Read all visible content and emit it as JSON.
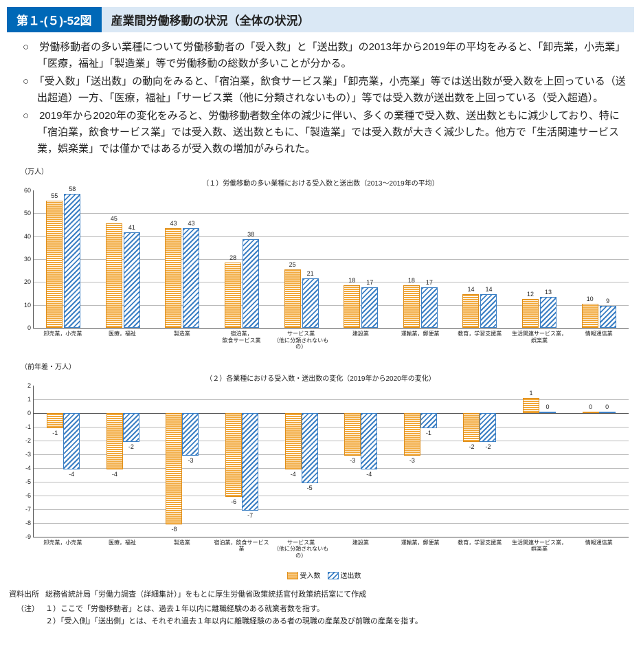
{
  "header": {
    "tag": "第１-(５)-52図",
    "title": "産業間労働移動の状況（全体の状況）"
  },
  "bullets": [
    "労働移動者の多い業種について労働移動者の「受入数」と「送出数」の2013年から2019年の平均をみると、「卸売業，小売業」「医療，福祉」「製造業」等で労働移動の総数が多いことが分かる。",
    "「受入数」「送出数」の動向をみると、「宿泊業，飲食サービス業」「卸売業，小売業」等では送出数が受入数を上回っている（送出超過）一方、「医療，福祉」「サービス業（他に分類されないもの）」等では受入数が送出数を上回っている（受入超過）。",
    "2019年から2020年の変化をみると、労働移動者数全体の減少に伴い、多くの業種で受入数、送出数ともに減少しており、特に「宿泊業，飲食サービス業」では受入数、送出数ともに、「製造業」では受入数が大きく減少した。他方で「生活関連サービス業，娯楽業」では僅かではあるが受入数の増加がみられた。"
  ],
  "chart1": {
    "type": "bar",
    "ylabel": "（万人）",
    "title": "（１）労働移動の多い業種における受入数と送出数（2013～2019年の平均）",
    "ylim": [
      0,
      60
    ],
    "ytick_step": 10,
    "grid_color": "#bbb",
    "categories": [
      "卸売業，小売業",
      "医療，福祉",
      "製造業",
      "宿泊業，\n飲食サービス業",
      "サービス業\n（他に分類されないもの）",
      "建設業",
      "運輸業，郵便業",
      "教育，学習支援業",
      "生活関連サービス業，\n娯楽業",
      "情報通信業"
    ],
    "series": [
      {
        "name": "受入数",
        "color": "#f2a93c",
        "border": "#df8f1c",
        "values": [
          55,
          45,
          43,
          28,
          25,
          18,
          18,
          14,
          12,
          10
        ]
      },
      {
        "name": "送出数",
        "color": "#3b7fc4",
        "border": "#3b7fc4",
        "values": [
          58,
          41,
          43,
          38,
          21,
          17,
          17,
          14,
          13,
          9
        ]
      }
    ]
  },
  "chart2": {
    "type": "bar",
    "ylabel": "（前年差・万人）",
    "title": "（２）各業種における受入数・送出数の変化（2019年から2020年の変化）",
    "ylim": [
      -9,
      2
    ],
    "ytick_step": 1,
    "grid_color": "#bbb",
    "categories": [
      "卸売業，小売業",
      "医療，福祉",
      "製造業",
      "宿泊業，飲食サービス業",
      "サービス業\n（他に分類されないもの）",
      "建設業",
      "運輸業，郵便業",
      "教育，学習支援業",
      "生活関連サービス業，\n娯楽業",
      "情報通信業"
    ],
    "series": [
      {
        "name": "受入数",
        "color": "#f2a93c",
        "border": "#df8f1c",
        "values": [
          -1,
          -4,
          -8,
          -6,
          -4,
          -3,
          -3,
          -2,
          1,
          0
        ]
      },
      {
        "name": "送出数",
        "color": "#3b7fc4",
        "border": "#3b7fc4",
        "values": [
          -4,
          -2,
          -3,
          -7,
          -5,
          -4,
          -1,
          -2,
          0,
          0
        ]
      }
    ]
  },
  "legend": {
    "items": [
      {
        "label": "受入数",
        "cls": "br"
      },
      {
        "label": "送出数",
        "cls": "bs"
      }
    ]
  },
  "notes": {
    "source_label": "資料出所",
    "source": "総務省統計局「労働力調査（詳細集計）」をもとに厚生労働省政策統括官付政策統括室にて作成",
    "note_label": "（注）",
    "items": [
      "１）ここで「労働移動者」とは、過去１年以内に離職経験のある就業者数を指す。",
      "２）「受入側」「送出側」とは、それぞれ過去１年以内に離職経験のある者の現職の産業及び前職の産業を指す。"
    ]
  }
}
